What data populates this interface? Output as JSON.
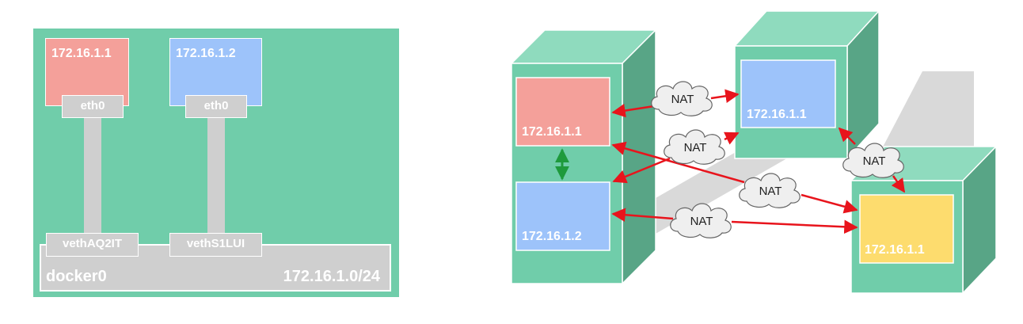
{
  "left": {
    "containers": [
      {
        "ip": "172.16.1.1",
        "iface": "eth0",
        "color": "#f4a09a"
      },
      {
        "ip": "172.16.1.2",
        "iface": "eth0",
        "color": "#9dc3fa"
      }
    ],
    "veths": [
      "vethAQ2IT",
      "vethS1LUI"
    ],
    "bridge": {
      "name": "docker0",
      "subnet": "172.16.1.0/24"
    }
  },
  "right": {
    "host1": {
      "ip_top": "172.16.1.1",
      "ip_bottom": "172.16.1.2"
    },
    "host2": {
      "ip": "172.16.1.1"
    },
    "host3": {
      "ip": "172.16.1.1"
    },
    "nat_label": "NAT",
    "colors": {
      "box": "#70cdaa",
      "box_top": "#8fdbbe",
      "box_side": "#58a586",
      "shadow": "#d9d9d9",
      "red": "#f4a09a",
      "blue": "#9dc3fa",
      "yellow": "#fddc6e",
      "arrow": "#e8141c",
      "green_arrow": "#1e9a3c"
    }
  }
}
